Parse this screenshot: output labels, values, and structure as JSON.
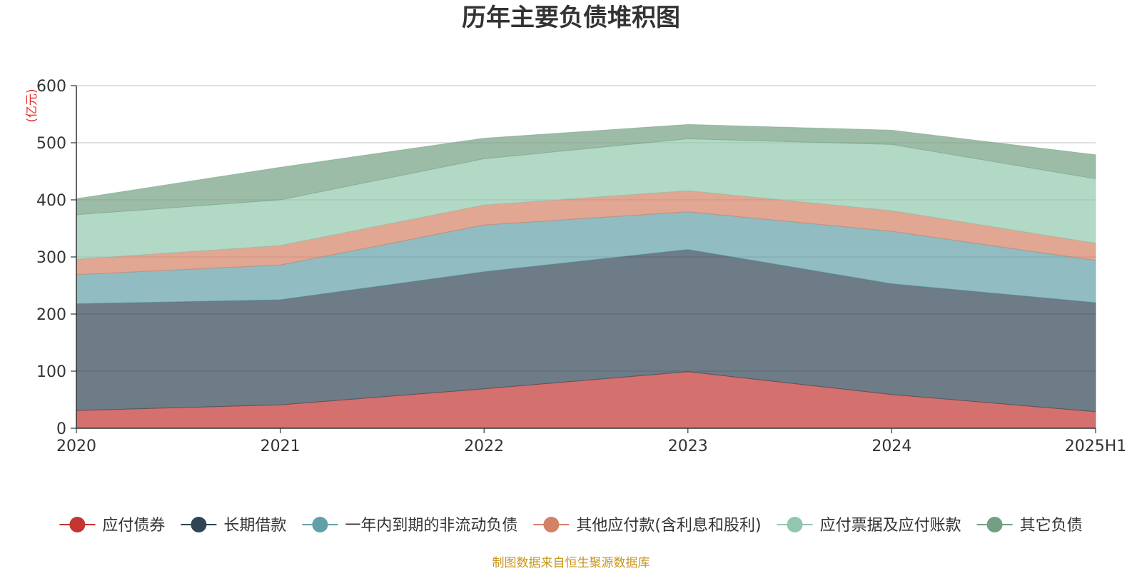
{
  "chart_data": {
    "type": "area",
    "stacked": true,
    "title": "历年主要负债堆积图",
    "unit_label": "(亿元)",
    "categories": [
      "2020",
      "2021",
      "2022",
      "2023",
      "2024",
      "2025H1"
    ],
    "ylim": [
      0,
      600
    ],
    "yticks": [
      0,
      100,
      200,
      300,
      400,
      500,
      600
    ],
    "grid": true,
    "legend_position": "bottom",
    "series": [
      {
        "name": "应付债券",
        "color": "#c23531",
        "values": [
          31,
          41,
          69,
          99,
          59,
          29
        ]
      },
      {
        "name": "长期借款",
        "color": "#2f4554",
        "values": [
          187,
          184,
          205,
          214,
          194,
          191
        ]
      },
      {
        "name": "一年内到期的非流动负债",
        "color": "#61a0a8",
        "values": [
          51,
          61,
          82,
          66,
          92,
          74
        ]
      },
      {
        "name": "其他应付款(含利息和股利)",
        "color": "#d48265",
        "values": [
          27,
          34,
          35,
          37,
          36,
          30
        ]
      },
      {
        "name": "应付票据及应付账款",
        "color": "#91c7ae",
        "values": [
          78,
          80,
          81,
          91,
          116,
          113
        ]
      },
      {
        "name": "其它负债",
        "color": "#749f83",
        "values": [
          28,
          57,
          36,
          25,
          25,
          42
        ]
      }
    ],
    "source": "制图数据来自恒生聚源数据库"
  }
}
